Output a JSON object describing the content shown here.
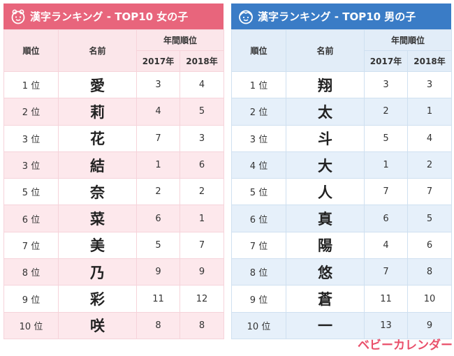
{
  "colors": {
    "girls_accent": "#e8657c",
    "boys_accent": "#3a7cc6",
    "logo": "#e94f6a"
  },
  "girls": {
    "title": "漢字ランキング - TOP10 女の子",
    "icon": "girl-face-icon",
    "col_rank": "順位",
    "col_name": "名前",
    "col_yearly": "年間順位",
    "col_2017": "2017年",
    "col_2018": "2018年",
    "rows": [
      {
        "rank": "1 位",
        "kanji": "愛",
        "y2017": "3",
        "y2018": "4"
      },
      {
        "rank": "2 位",
        "kanji": "莉",
        "y2017": "4",
        "y2018": "5"
      },
      {
        "rank": "3 位",
        "kanji": "花",
        "y2017": "7",
        "y2018": "3"
      },
      {
        "rank": "3 位",
        "kanji": "結",
        "y2017": "1",
        "y2018": "6"
      },
      {
        "rank": "5 位",
        "kanji": "奈",
        "y2017": "2",
        "y2018": "2"
      },
      {
        "rank": "6 位",
        "kanji": "菜",
        "y2017": "6",
        "y2018": "1"
      },
      {
        "rank": "7 位",
        "kanji": "美",
        "y2017": "5",
        "y2018": "7"
      },
      {
        "rank": "8 位",
        "kanji": "乃",
        "y2017": "9",
        "y2018": "9"
      },
      {
        "rank": "9 位",
        "kanji": "彩",
        "y2017": "11",
        "y2018": "12"
      },
      {
        "rank": "10 位",
        "kanji": "咲",
        "y2017": "8",
        "y2018": "8"
      }
    ]
  },
  "boys": {
    "title": "漢字ランキング - TOP10 男の子",
    "icon": "boy-face-icon",
    "col_rank": "順位",
    "col_name": "名前",
    "col_yearly": "年間順位",
    "col_2017": "2017年",
    "col_2018": "2018年",
    "rows": [
      {
        "rank": "1 位",
        "kanji": "翔",
        "y2017": "3",
        "y2018": "3"
      },
      {
        "rank": "2 位",
        "kanji": "太",
        "y2017": "2",
        "y2018": "1"
      },
      {
        "rank": "3 位",
        "kanji": "斗",
        "y2017": "5",
        "y2018": "4"
      },
      {
        "rank": "4 位",
        "kanji": "大",
        "y2017": "1",
        "y2018": "2"
      },
      {
        "rank": "5 位",
        "kanji": "人",
        "y2017": "7",
        "y2018": "7"
      },
      {
        "rank": "6 位",
        "kanji": "真",
        "y2017": "6",
        "y2018": "5"
      },
      {
        "rank": "7 位",
        "kanji": "陽",
        "y2017": "4",
        "y2018": "6"
      },
      {
        "rank": "8 位",
        "kanji": "悠",
        "y2017": "7",
        "y2018": "8"
      },
      {
        "rank": "9 位",
        "kanji": "蒼",
        "y2017": "11",
        "y2018": "10"
      },
      {
        "rank": "10 位",
        "kanji": "一",
        "y2017": "13",
        "y2018": "9"
      }
    ]
  },
  "logo": "ベビーカレンダー"
}
